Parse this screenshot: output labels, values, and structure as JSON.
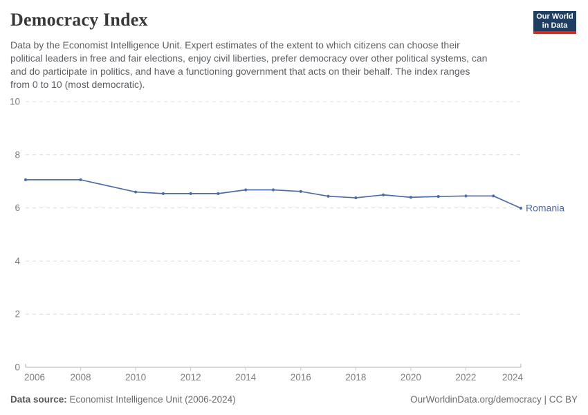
{
  "header": {
    "title": "Democracy Index",
    "subtitle_lines": [
      "Data by the Economist Intelligence Unit. Expert estimates of the extent to which citizens can choose their",
      "political leaders in free and fair elections, enjoy civil liberties, prefer democracy over other political systems, can",
      "and do participate in politics, and have a functioning government that acts on their behalf. The index ranges",
      "from 0 to 10 (most democratic)."
    ],
    "logo": {
      "line1": "Our World",
      "line2": "in Data",
      "bg_color": "#1d3d63",
      "accent_color": "#d42b21"
    }
  },
  "chart_data": {
    "type": "line",
    "title": "Democracy Index",
    "x": [
      2006,
      2008,
      2010,
      2011,
      2012,
      2013,
      2014,
      2015,
      2016,
      2017,
      2018,
      2019,
      2020,
      2021,
      2022,
      2023,
      2024
    ],
    "series": [
      {
        "name": "Romania",
        "color": "#4c6ca6",
        "values": [
          7.06,
          7.06,
          6.6,
          6.54,
          6.54,
          6.54,
          6.68,
          6.68,
          6.62,
          6.44,
          6.38,
          6.49,
          6.4,
          6.43,
          6.45,
          6.45,
          5.99
        ]
      }
    ],
    "xlim": [
      2006,
      2024
    ],
    "ylim": [
      0,
      10
    ],
    "x_ticks": [
      2006,
      2008,
      2010,
      2012,
      2014,
      2016,
      2018,
      2020,
      2022,
      2024
    ],
    "y_ticks": [
      0,
      2,
      4,
      6,
      8,
      10
    ],
    "grid": "horizontal-dashed",
    "legend_position": "end-of-line",
    "end_label": "Romania",
    "colors": {
      "grid": "#dcdcdc",
      "axis": "#b0b0b0",
      "tick": "#c2c2c2",
      "tick_text": "#7d7d7d"
    }
  },
  "footer": {
    "source_label": "Data source:",
    "source_text": " Economist Intelligence Unit (2006-2024)",
    "attribution": "OurWorldinData.org/democracy | CC BY"
  }
}
